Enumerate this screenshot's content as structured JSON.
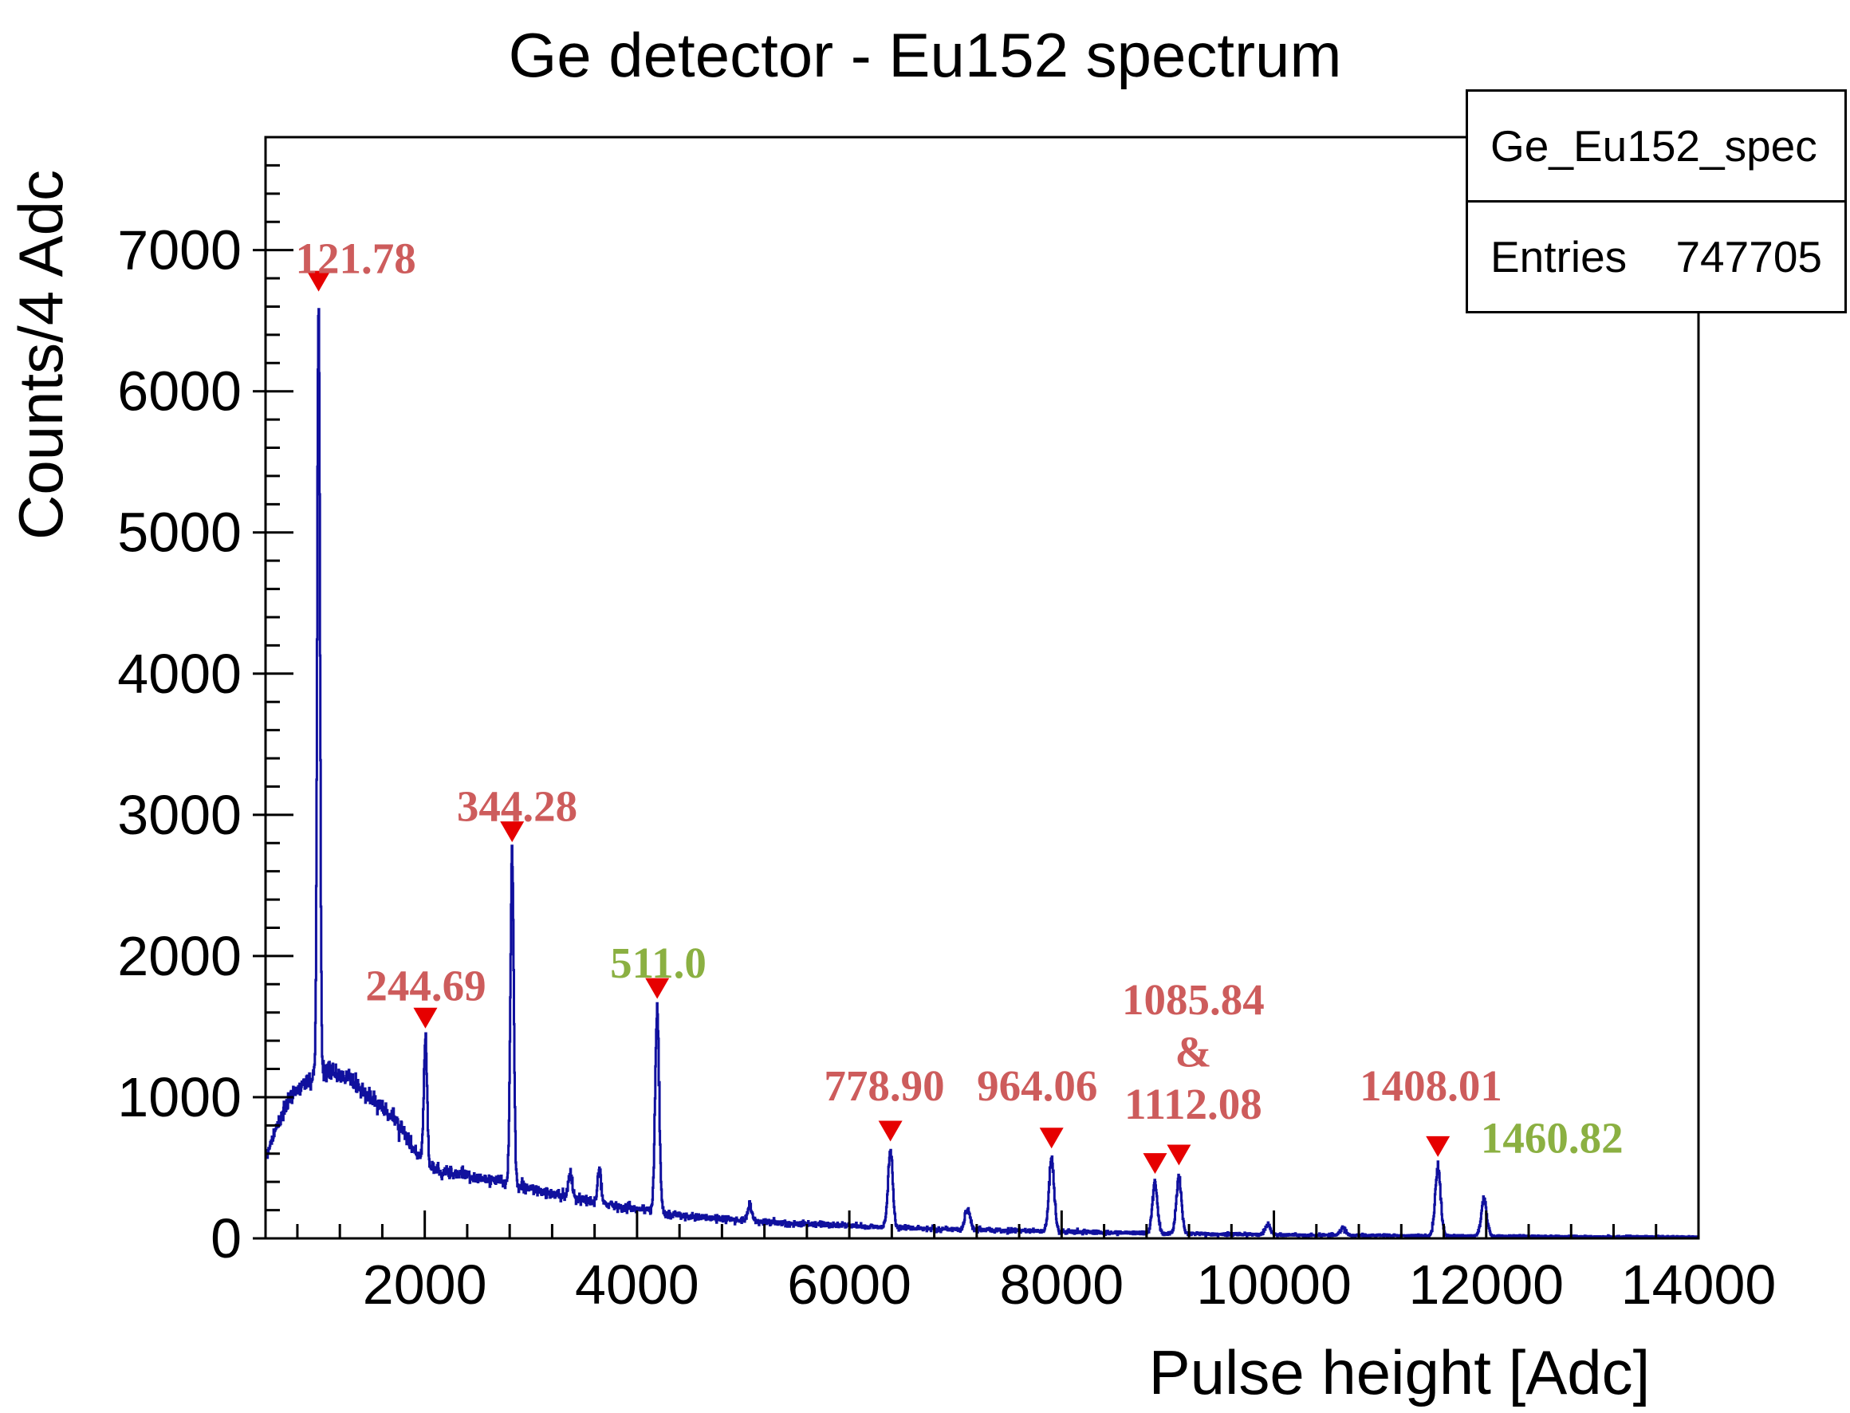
{
  "page": {
    "title_text": "Ge detector - Eu152 spectrum"
  },
  "stats_box": {
    "title": "Ge_Eu152_spec",
    "entries_label": "Entries",
    "entries_value": "747705"
  },
  "chart_data": {
    "type": "line",
    "subtype": "histogram-spectrum",
    "title": "Ge detector - Eu152 spectrum",
    "xlabel": "Pulse height [Adc]",
    "ylabel": "Counts/4 Adc",
    "xlim": [
      500,
      14000
    ],
    "ylim": [
      0,
      7800
    ],
    "x_ticks": [
      2000,
      4000,
      6000,
      8000,
      10000,
      12000,
      14000
    ],
    "y_ticks": [
      0,
      1000,
      2000,
      3000,
      4000,
      5000,
      6000,
      7000
    ],
    "x_minor_step": 400,
    "y_minor_step": 200,
    "bin_width_adc": 4,
    "entries": 747705,
    "grid": false,
    "legend_position": "top-right-stats-box",
    "colors": {
      "histogram": "#10109e",
      "marker": "#e60000",
      "label_red": "#cd5c5c",
      "label_green": "#8bb042",
      "axis": "#000000"
    },
    "continuum_points": [
      [
        500,
        580
      ],
      [
        620,
        820
      ],
      [
        700,
        950
      ],
      [
        800,
        1060
      ],
      [
        900,
        1120
      ],
      [
        1000,
        1160
      ],
      [
        1100,
        1180
      ],
      [
        1250,
        1150
      ],
      [
        1400,
        1060
      ],
      [
        1550,
        960
      ],
      [
        1700,
        860
      ],
      [
        1800,
        760
      ],
      [
        1900,
        620
      ],
      [
        2000,
        530
      ],
      [
        2150,
        480
      ],
      [
        2300,
        460
      ],
      [
        2500,
        430
      ],
      [
        2700,
        405
      ],
      [
        2900,
        370
      ],
      [
        3100,
        330
      ],
      [
        3300,
        300
      ],
      [
        3500,
        270
      ],
      [
        3700,
        245
      ],
      [
        3900,
        220
      ],
      [
        4050,
        205
      ],
      [
        4200,
        185
      ],
      [
        4400,
        160
      ],
      [
        4600,
        148
      ],
      [
        4800,
        138
      ],
      [
        5000,
        128
      ],
      [
        5250,
        115
      ],
      [
        5500,
        105
      ],
      [
        5750,
        98
      ],
      [
        6000,
        90
      ],
      [
        6250,
        82
      ],
      [
        6500,
        75
      ],
      [
        6750,
        70
      ],
      [
        7000,
        64
      ],
      [
        7250,
        60
      ],
      [
        7500,
        55
      ],
      [
        7750,
        52
      ],
      [
        8000,
        48
      ],
      [
        8250,
        44
      ],
      [
        8500,
        41
      ],
      [
        8750,
        38
      ],
      [
        9000,
        35
      ],
      [
        9250,
        32
      ],
      [
        9500,
        30
      ],
      [
        9750,
        28
      ],
      [
        10000,
        26
      ],
      [
        10300,
        24
      ],
      [
        10600,
        22
      ],
      [
        11000,
        20
      ],
      [
        11400,
        18
      ],
      [
        11800,
        17
      ],
      [
        12200,
        15
      ],
      [
        12600,
        14
      ],
      [
        13000,
        12
      ],
      [
        13400,
        11
      ],
      [
        14000,
        10
      ]
    ],
    "peaks": [
      {
        "adc": 1000,
        "amp": 5450,
        "sigma": 13,
        "energy_label": "121.78"
      },
      {
        "adc": 2006,
        "amp": 880,
        "sigma": 15,
        "energy_label": "244.69"
      },
      {
        "adc": 2823,
        "amp": 2330,
        "sigma": 16,
        "energy_label": "344.28"
      },
      {
        "adc": 3371,
        "amp": 165,
        "sigma": 17
      },
      {
        "adc": 3645,
        "amp": 235,
        "sigma": 17
      },
      {
        "adc": 4190,
        "amp": 1430,
        "sigma": 19,
        "energy_label": "511.0"
      },
      {
        "adc": 5060,
        "amp": 115,
        "sigma": 20
      },
      {
        "adc": 6387,
        "amp": 545,
        "sigma": 22,
        "energy_label": "778.90"
      },
      {
        "adc": 7113,
        "amp": 150,
        "sigma": 23
      },
      {
        "adc": 7905,
        "amp": 520,
        "sigma": 24,
        "energy_label": "964.06"
      },
      {
        "adc": 8880,
        "amp": 345,
        "sigma": 24,
        "energy_label": "1085.84"
      },
      {
        "adc": 9105,
        "amp": 400,
        "sigma": 24,
        "energy_label": "1112.08"
      },
      {
        "adc": 9940,
        "amp": 75,
        "sigma": 25
      },
      {
        "adc": 10650,
        "amp": 55,
        "sigma": 25
      },
      {
        "adc": 11545,
        "amp": 480,
        "sigma": 26,
        "energy_label": "1408.01"
      },
      {
        "adc": 11980,
        "amp": 265,
        "sigma": 26,
        "energy_label": "1460.82"
      }
    ],
    "peak_markers": [
      {
        "adc": 1000,
        "counts": 6780
      },
      {
        "adc": 2006,
        "counts": 1560
      },
      {
        "adc": 2823,
        "counts": 2880
      },
      {
        "adc": 4190,
        "counts": 1770
      },
      {
        "adc": 6387,
        "counts": 760
      },
      {
        "adc": 7905,
        "counts": 710
      },
      {
        "adc": 8880,
        "counts": 530
      },
      {
        "adc": 9105,
        "counts": 590
      },
      {
        "adc": 11545,
        "counts": 650
      }
    ],
    "peak_labels": [
      {
        "adc": 1350,
        "counts": 6950,
        "text": "121.78",
        "color": "red"
      },
      {
        "adc": 2010,
        "counts": 1800,
        "text": "244.69",
        "color": "red"
      },
      {
        "adc": 2870,
        "counts": 3070,
        "text": "344.28",
        "color": "red"
      },
      {
        "adc": 4200,
        "counts": 1960,
        "text": "511.0",
        "color": "green"
      },
      {
        "adc": 6330,
        "counts": 1090,
        "text": "778.90",
        "color": "red"
      },
      {
        "adc": 7770,
        "counts": 1090,
        "text": "964.06",
        "color": "red"
      },
      {
        "adc": 9240,
        "counts": 1700,
        "text": "1085.84",
        "color": "red"
      },
      {
        "adc": 9240,
        "counts": 1330,
        "text": "&",
        "color": "red"
      },
      {
        "adc": 9240,
        "counts": 960,
        "text": "1112.08",
        "color": "red"
      },
      {
        "adc": 11480,
        "counts": 1090,
        "text": "1408.01",
        "color": "red"
      },
      {
        "adc": 12620,
        "counts": 720,
        "text": "1460.82",
        "color": "green"
      }
    ]
  }
}
